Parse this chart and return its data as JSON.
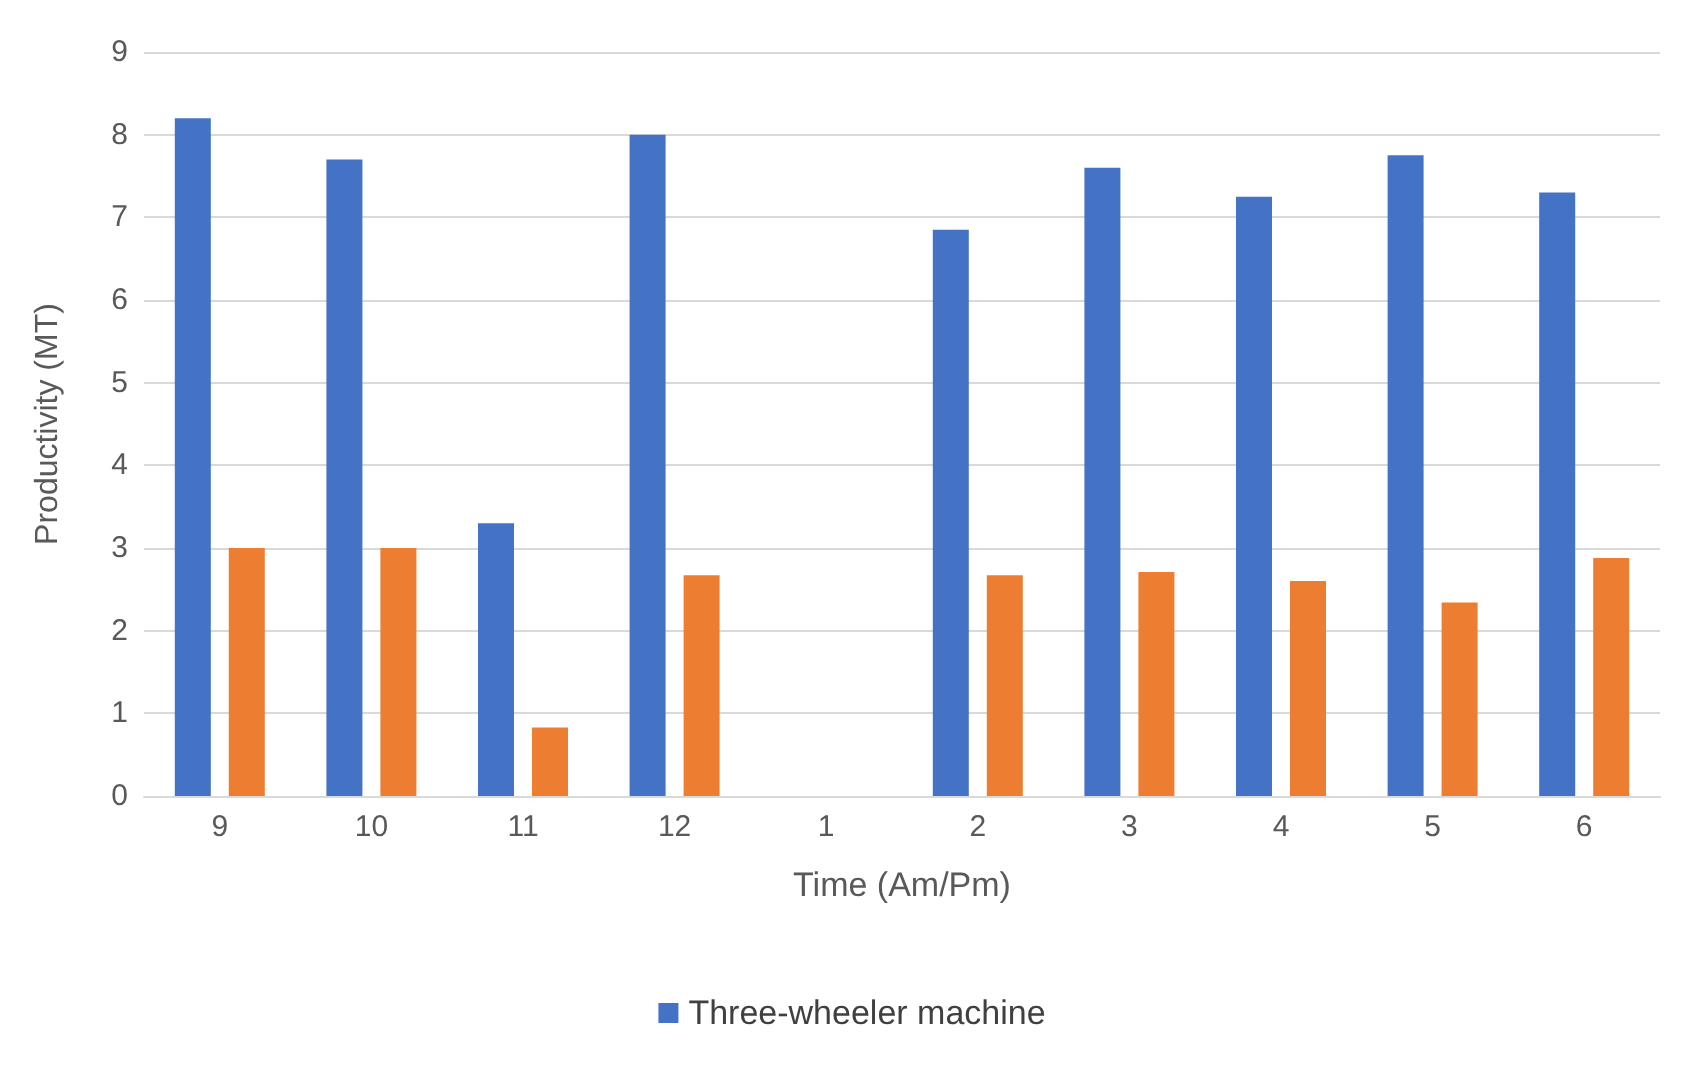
{
  "chart_data": {
    "type": "bar",
    "xlabel": "Time (Am/Pm)",
    "ylabel": "Productivity (MT)",
    "categories": [
      "9",
      "10",
      "11",
      "12",
      "1",
      "2",
      "3",
      "4",
      "5",
      "6"
    ],
    "series": [
      {
        "name": "Three-wheeler machine",
        "color": "#4472c4",
        "values": [
          8.2,
          7.7,
          3.3,
          8.0,
          0,
          6.85,
          7.6,
          7.25,
          7.75,
          7.3
        ]
      },
      {
        "color": "#ed7d31",
        "values": [
          3.0,
          3.0,
          0.83,
          2.67,
          0,
          2.67,
          2.71,
          2.6,
          2.34,
          2.88
        ]
      }
    ],
    "ylim": [
      0,
      9
    ],
    "yticks": [
      0,
      1,
      2,
      3,
      4,
      5,
      6,
      7,
      8,
      9
    ],
    "grid": "y",
    "legend": "bottom"
  }
}
